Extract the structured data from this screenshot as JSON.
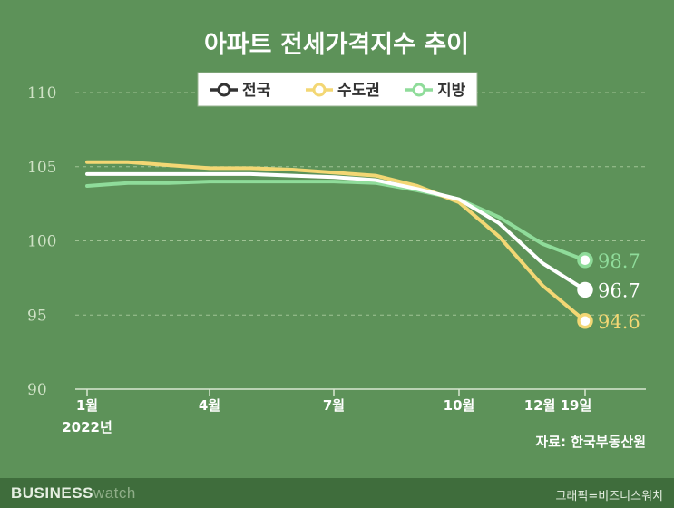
{
  "chart_data": {
    "type": "line",
    "title": "아파트 전세가격지수 추이",
    "categories": [
      "2022-01",
      "2022-02",
      "2022-03",
      "2022-04",
      "2022-05",
      "2022-06",
      "2022-07",
      "2022-08",
      "2022-09",
      "2022-10",
      "2022-11",
      "2022-12-05",
      "2022-12-19"
    ],
    "tick_labels": [
      "1월",
      "4월",
      "7월",
      "10월",
      "12월 19일"
    ],
    "year_label": "2022년",
    "y_ticks": [
      "90",
      "95",
      "100",
      "105",
      "110"
    ],
    "ylim": [
      90,
      110
    ],
    "series": [
      {
        "name": "전국",
        "color": "#ffffff",
        "values": [
          104.5,
          104.5,
          104.5,
          104.5,
          104.5,
          104.4,
          104.3,
          104.1,
          103.5,
          102.8,
          101.2,
          98.5,
          96.7
        ]
      },
      {
        "name": "수도권",
        "color": "#f3d774",
        "values": [
          105.3,
          105.3,
          105.1,
          104.9,
          104.9,
          104.8,
          104.6,
          104.4,
          103.7,
          102.6,
          100.3,
          97.0,
          94.6
        ]
      },
      {
        "name": "지방",
        "color": "#8fdc9a",
        "values": [
          103.7,
          103.9,
          103.9,
          104.0,
          104.0,
          104.0,
          104.0,
          103.9,
          103.4,
          102.8,
          101.6,
          99.8,
          98.7
        ]
      }
    ],
    "end_labels": [
      "96.7",
      "94.6",
      "98.7"
    ],
    "source": "자료: 한국부동산원"
  },
  "footer": {
    "brand_bold": "BUSINESS",
    "brand_light": "watch",
    "credit": "그래픽=비즈니스워치"
  },
  "colors": {
    "background": "#5d9259",
    "grid": "#9fc394",
    "axis": "#d9e8d2"
  }
}
